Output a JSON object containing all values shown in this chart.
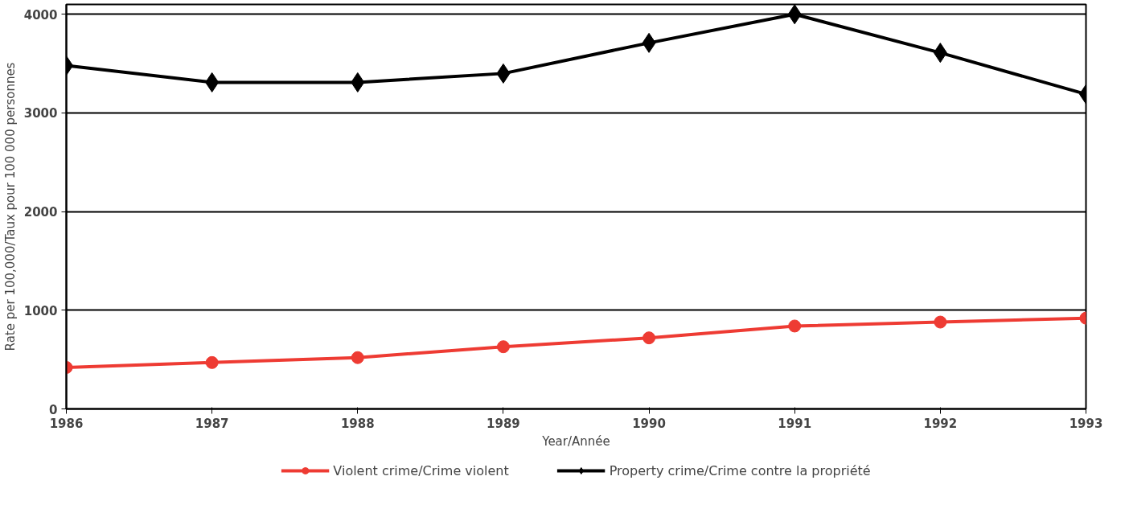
{
  "chart_data": {
    "type": "line",
    "xlabel": "Year/Année",
    "ylabel": "Rate per 100,000/Taux pour 100 000 personnes",
    "x": [
      1986,
      1987,
      1988,
      1989,
      1990,
      1991,
      1992,
      1993
    ],
    "xlim": [
      1986,
      1993
    ],
    "xticks": [
      1986,
      1987,
      1988,
      1989,
      1990,
      1991,
      1992,
      1993
    ],
    "ylim": [
      0,
      4100
    ],
    "yticks": [
      0,
      1000,
      2000,
      3000,
      4000
    ],
    "grid": "y",
    "legend": "bottom",
    "line_style": "solid",
    "series": [
      {
        "name": "Violent crime/Crime violent",
        "color": "#ee3b33",
        "marker": "circle",
        "values": [
          420,
          470,
          520,
          630,
          720,
          840,
          880,
          920
        ]
      },
      {
        "name": "Property crime/Crime contre la propriété",
        "color": "#000000",
        "marker": "diamond",
        "values": [
          3480,
          3310,
          3310,
          3400,
          3710,
          4000,
          3610,
          3190
        ]
      }
    ]
  }
}
